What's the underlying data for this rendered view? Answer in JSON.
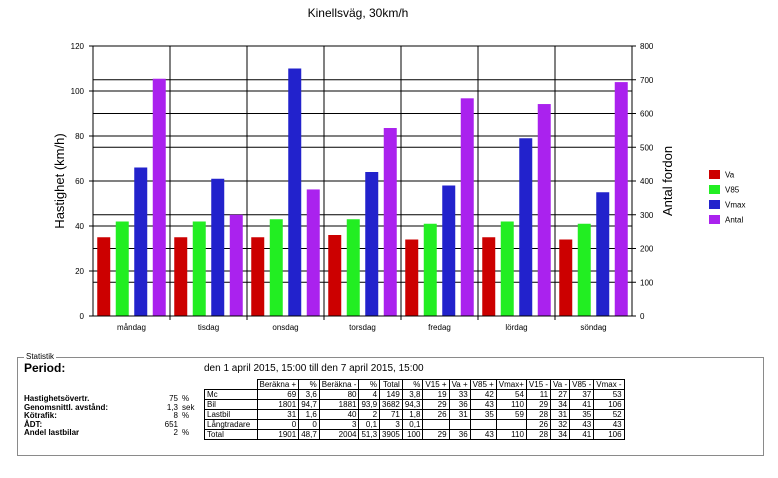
{
  "chart_data": {
    "type": "bar",
    "title": "Kinellsväg, 30km/h",
    "ylabel": "Hastighet (km/h)",
    "ylabel_right": "Antal fordon",
    "ylim": [
      0,
      120
    ],
    "ylim_right": [
      0,
      800
    ],
    "yticks": [
      "0",
      "20",
      "40",
      "60",
      "80",
      "100",
      "120"
    ],
    "yticks_right": [
      "0",
      "100",
      "200",
      "300",
      "400",
      "500",
      "600",
      "700",
      "800"
    ],
    "categories": [
      "måndag",
      "tisdag",
      "onsdag",
      "torsdag",
      "fredag",
      "lördag",
      "söndag"
    ],
    "series": [
      {
        "name": "Va",
        "color": "#cc0000",
        "axis": "left",
        "values": [
          35,
          35,
          35,
          36,
          34,
          35,
          34
        ]
      },
      {
        "name": "V85",
        "color": "#22ee22",
        "axis": "left",
        "values": [
          42,
          42,
          43,
          43,
          41,
          42,
          41
        ]
      },
      {
        "name": "Vmax",
        "color": "#2222cc",
        "axis": "left",
        "values": [
          66,
          61,
          110,
          64,
          58,
          79,
          55
        ]
      },
      {
        "name": "Antal",
        "color": "#aa22ee",
        "axis": "right",
        "values": [
          703,
          300,
          375,
          557,
          645,
          628,
          693
        ]
      }
    ],
    "grid": true,
    "legend_position": "right"
  },
  "stats": {
    "legend": "Statistik",
    "period_label": "Period:",
    "period_text": "den 1 april 2015, 15:00 till den 7 april 2015, 15:00",
    "summary": [
      {
        "label": "Hastighetsövertr.",
        "value": "75",
        "unit": "%"
      },
      {
        "label": "Genomsnittl. avstånd:",
        "value": "1,3",
        "unit": "sek"
      },
      {
        "label": "Kötrafik:",
        "value": "8",
        "unit": "%"
      },
      {
        "label": "ÅDT:",
        "value": "651",
        "unit": ""
      },
      {
        "label": "Andel lastbilar",
        "value": "2",
        "unit": "%"
      }
    ],
    "table": {
      "headers": [
        "",
        "Beräkna +",
        "%",
        "Beräkna -",
        "%",
        "Total",
        "%",
        "V15 +",
        "Va +",
        "V85 +",
        "Vmax+",
        "V15 -",
        "Va -",
        "V85 -",
        "Vmax -"
      ],
      "rows": [
        [
          "Mc",
          "69",
          "3,6",
          "80",
          "4",
          "149",
          "3,8",
          "19",
          "33",
          "42",
          "54",
          "11",
          "27",
          "37",
          "53"
        ],
        [
          "Bil",
          "1801",
          "94,7",
          "1881",
          "93,9",
          "3682",
          "94,3",
          "29",
          "36",
          "43",
          "110",
          "29",
          "34",
          "41",
          "106"
        ],
        [
          "Lastbil",
          "31",
          "1,6",
          "40",
          "2",
          "71",
          "1,8",
          "26",
          "31",
          "35",
          "59",
          "28",
          "31",
          "35",
          "52"
        ],
        [
          "Långtradare",
          "0",
          "0",
          "3",
          "0,1",
          "3",
          "0,1",
          "",
          "",
          "",
          "",
          "26",
          "32",
          "43",
          "43"
        ],
        [
          "Total",
          "1901",
          "48,7",
          "2004",
          "51,3",
          "3905",
          "100",
          "29",
          "36",
          "43",
          "110",
          "28",
          "34",
          "41",
          "106"
        ]
      ]
    }
  }
}
